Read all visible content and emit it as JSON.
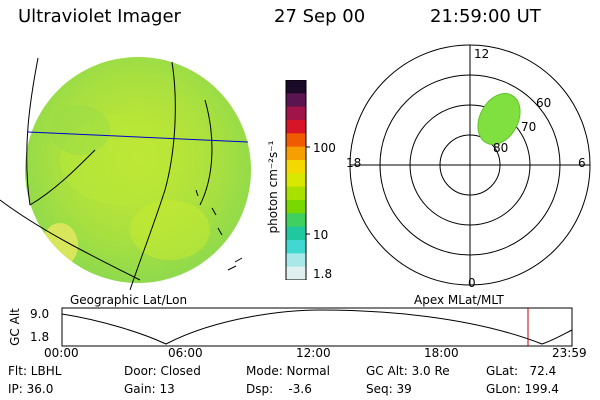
{
  "header": {
    "instrument": "Ultraviolet Imager",
    "date": "27 Sep 00",
    "time": "21:59:00 UT"
  },
  "colorbar": {
    "label": "photon cm⁻²s⁻¹",
    "ticks": [
      "100",
      "10",
      "1.8"
    ],
    "colors": [
      "#1a0a28",
      "#5a1450",
      "#a0144a",
      "#d81428",
      "#f05a00",
      "#f5a000",
      "#f5d800",
      "#d8e800",
      "#a8e000",
      "#78d800",
      "#40d060",
      "#20c8a0",
      "#40d8d0",
      "#a8e8e8",
      "#e0f0f0"
    ]
  },
  "left_panel": {
    "caption": "Geographic Lat/Lon"
  },
  "right_panel": {
    "caption": "Apex MLat/MLT",
    "mlt_labels": {
      "top": "12",
      "left": "18",
      "right": "6",
      "bottom": "0"
    },
    "lat_labels": [
      "60",
      "70",
      "80"
    ],
    "aurora_color": "#80e040"
  },
  "altitude_plot": {
    "ylabel": "GC Alt",
    "yticks": [
      "9.0",
      "1.8"
    ],
    "xticks": [
      "00:00",
      "06:00",
      "12:00",
      "18:00",
      "23:59"
    ],
    "marker_color": "#c00000"
  },
  "info": {
    "flt": "Flt: LBHL",
    "ip": "IP: 36.0",
    "door": "Door: Closed",
    "gain": "Gain: 13",
    "mode": "Mode: Normal",
    "dsp": "Dsp:    -3.6",
    "gcalt": "GC Alt: 3.0 Re",
    "seq": "Seq: 39",
    "glat": "GLat:   72.4",
    "glon": "GLon: 199.4"
  }
}
